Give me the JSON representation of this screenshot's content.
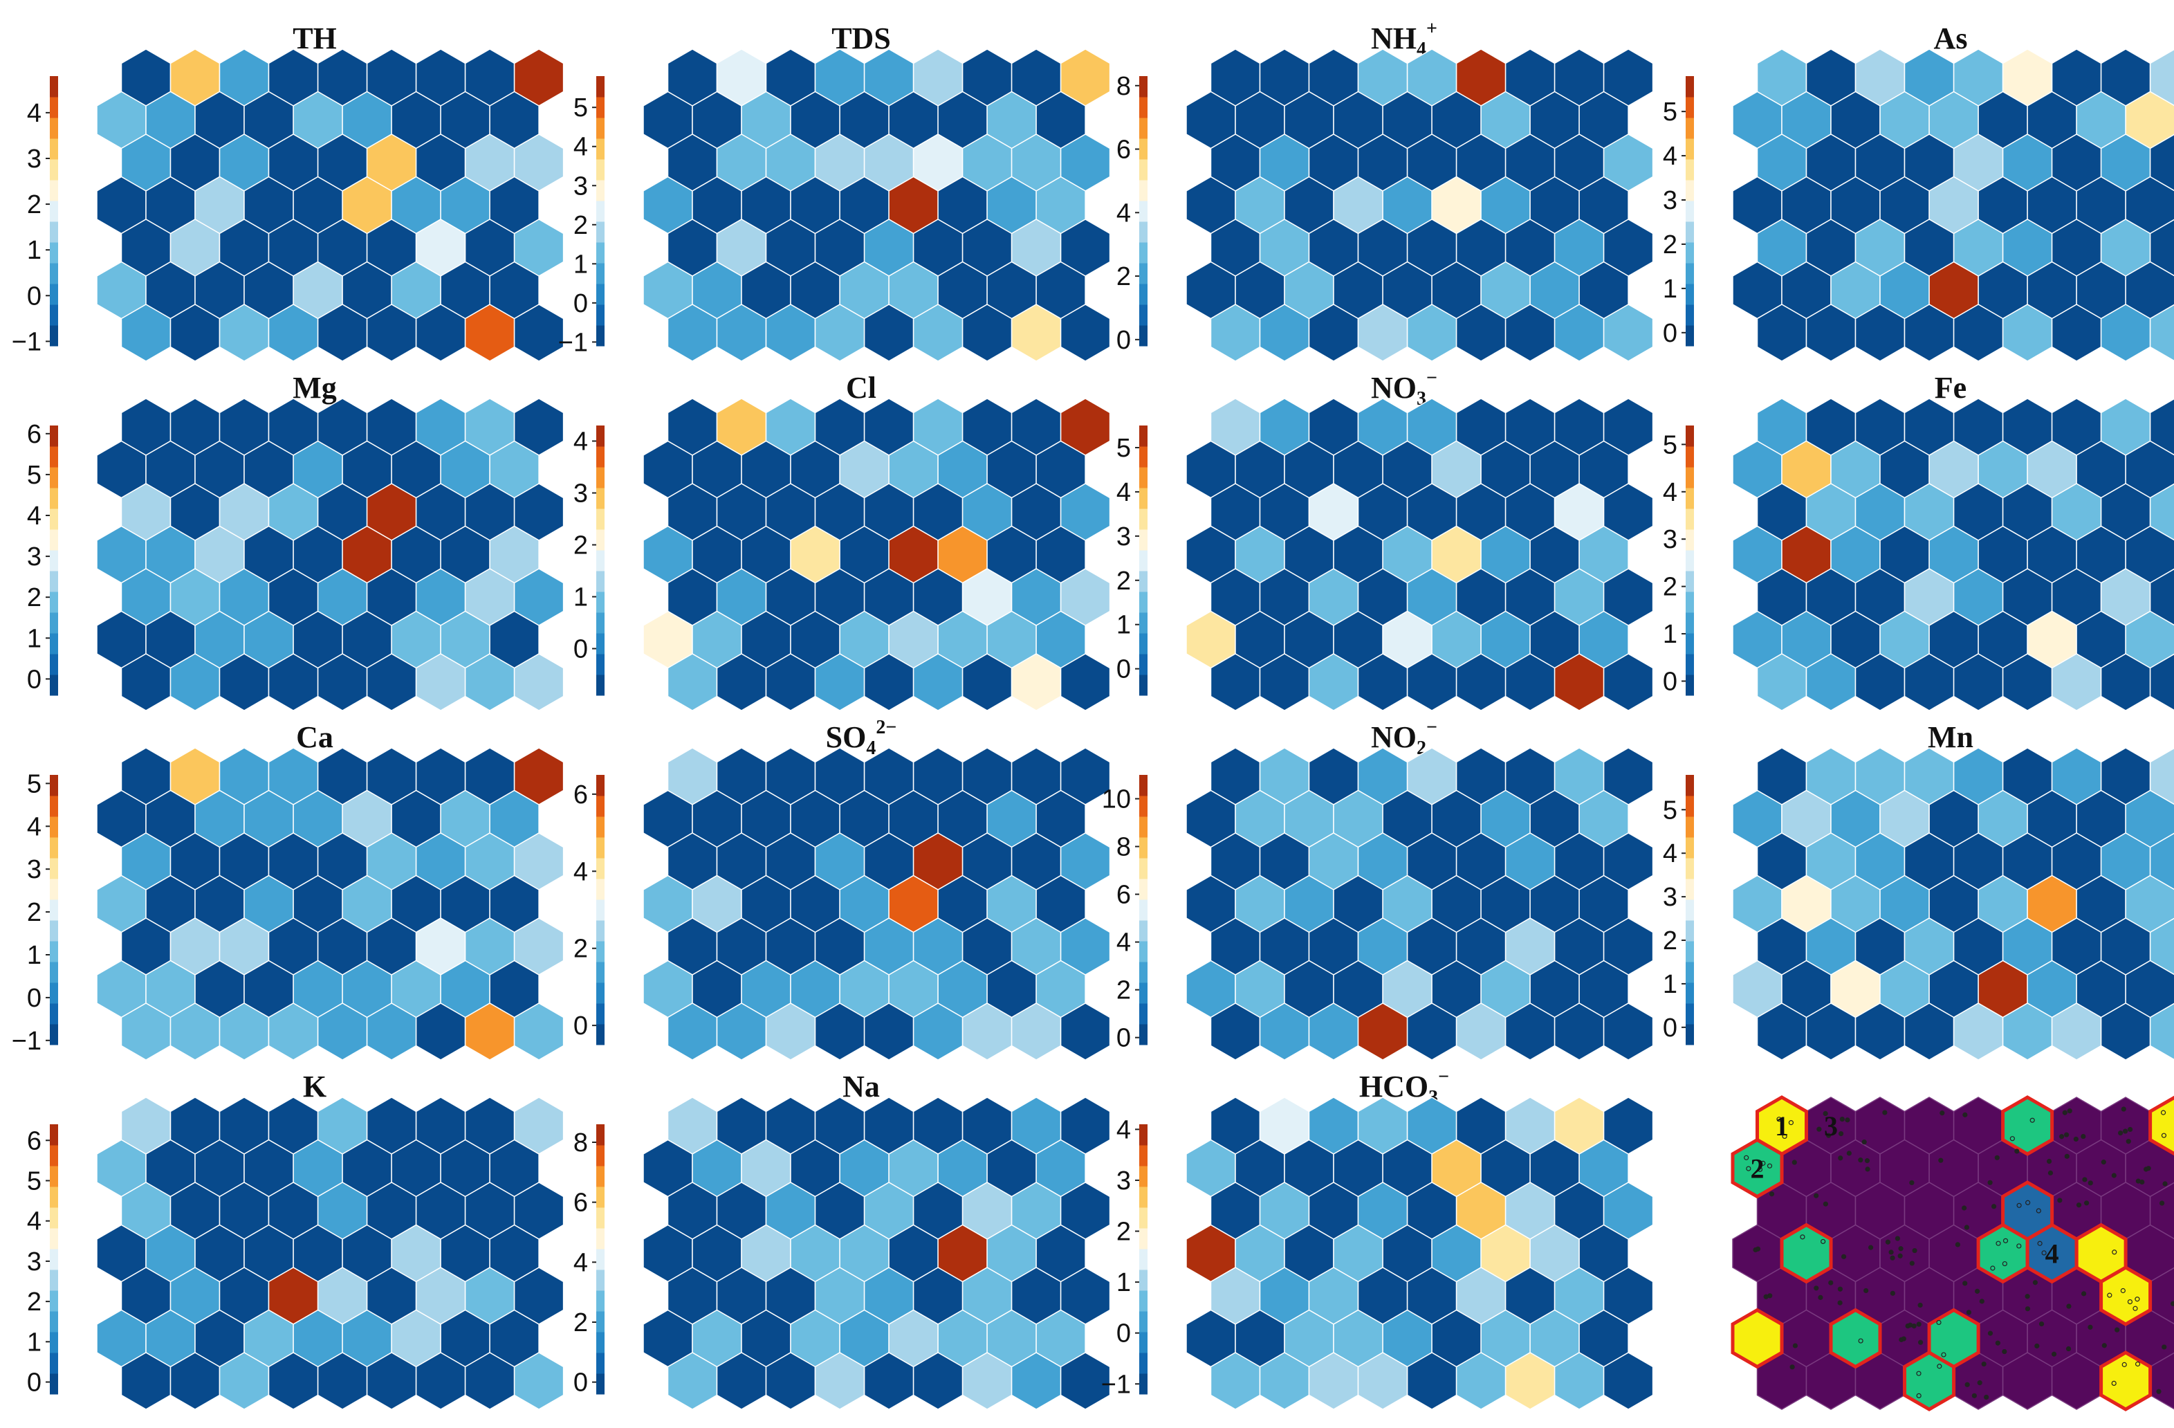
{
  "colors": {
    "palette": [
      "#084a8c",
      "#1167b0",
      "#2688c6",
      "#43a2d3",
      "#6cbde0",
      "#a7d4ea",
      "#e2f1f8",
      "#fff4d8",
      "#fde6a0",
      "#fbc65c",
      "#f7952c",
      "#e55c13",
      "#ae2f0d"
    ],
    "cluster": {
      "background": "#55095c",
      "grid": "#7a3a80",
      "cluster1": "#f7ef0e",
      "cluster2": "#1dc680",
      "cluster4": "#2069a6",
      "boundary": "#e3241c",
      "dot": "#222222"
    }
  },
  "chart_data": [
    {
      "type": "heatmap",
      "title": "TH",
      "title_sub": "",
      "title_sup": "",
      "colorbar": {
        "ticks": [
          -1,
          0,
          1,
          2,
          3,
          4
        ],
        "min": -1.1,
        "max": 4.8
      },
      "hot_cells": [
        {
          "row": 0,
          "col": 1,
          "value": 3.2
        },
        {
          "row": 0,
          "col": 8,
          "value": 4.8
        },
        {
          "row": 2,
          "col": 5,
          "value": 3.0
        },
        {
          "row": 3,
          "col": 5,
          "value": 3.3
        },
        {
          "row": 4,
          "col": 6,
          "value": 2.0
        },
        {
          "row": 6,
          "col": 7,
          "value": 4.3
        },
        {
          "row": 5,
          "col": 0,
          "value": 1.0
        }
      ]
    },
    {
      "type": "heatmap",
      "title": "TDS",
      "title_sub": "",
      "title_sup": "",
      "colorbar": {
        "ticks": [
          -1,
          0,
          1,
          2,
          3,
          4,
          5
        ],
        "min": -1.1,
        "max": 5.8
      },
      "hot_cells": [
        {
          "row": 0,
          "col": 1,
          "value": 2.3
        },
        {
          "row": 0,
          "col": 8,
          "value": 3.8
        },
        {
          "row": 2,
          "col": 5,
          "value": 2.2
        },
        {
          "row": 3,
          "col": 5,
          "value": 5.8
        },
        {
          "row": 6,
          "col": 7,
          "value": 3.5
        }
      ]
    },
    {
      "type": "heatmap",
      "title": "NH",
      "title_sub": "4",
      "title_sup": "+",
      "colorbar": {
        "ticks": [
          0,
          2,
          4,
          6,
          8
        ],
        "min": -0.2,
        "max": 8.3
      },
      "hot_cells": [
        {
          "row": 0,
          "col": 5,
          "value": 8.2
        },
        {
          "row": 3,
          "col": 5,
          "value": 4.5
        }
      ]
    },
    {
      "type": "heatmap",
      "title": "As",
      "title_sub": "",
      "title_sup": "",
      "colorbar": {
        "ticks": [
          0,
          1,
          2,
          3,
          4,
          5
        ],
        "min": -0.3,
        "max": 5.8
      },
      "hot_cells": [
        {
          "row": 0,
          "col": 5,
          "value": 3.4
        },
        {
          "row": 1,
          "col": 8,
          "value": 3.7
        },
        {
          "row": 5,
          "col": 4,
          "value": 5.8
        }
      ]
    },
    {
      "type": "heatmap",
      "title": "Mg",
      "title_sub": "",
      "title_sup": "",
      "colorbar": {
        "ticks": [
          0,
          1,
          2,
          3,
          4,
          5,
          6
        ],
        "min": -0.4,
        "max": 6.2
      },
      "hot_cells": [
        {
          "row": 2,
          "col": 5,
          "value": 6.2
        },
        {
          "row": 3,
          "col": 5,
          "value": 6.0
        }
      ]
    },
    {
      "type": "heatmap",
      "title": "Cl",
      "title_sub": "",
      "title_sup": "",
      "colorbar": {
        "ticks": [
          0,
          1,
          2,
          3,
          4
        ],
        "min": -0.9,
        "max": 4.3
      },
      "hot_cells": [
        {
          "row": 0,
          "col": 1,
          "value": 2.7
        },
        {
          "row": 0,
          "col": 8,
          "value": 4.0
        },
        {
          "row": 3,
          "col": 3,
          "value": 2.6
        },
        {
          "row": 3,
          "col": 5,
          "value": 4.2
        },
        {
          "row": 3,
          "col": 6,
          "value": 3.3
        },
        {
          "row": 4,
          "col": 6,
          "value": 1.8
        },
        {
          "row": 5,
          "col": 0,
          "value": 1.9
        },
        {
          "row": 6,
          "col": 7,
          "value": 1.9
        }
      ]
    },
    {
      "type": "heatmap",
      "title": "NO",
      "title_sub": "3",
      "title_sup": "−",
      "colorbar": {
        "ticks": [
          0,
          1,
          2,
          3,
          4,
          5
        ],
        "min": -0.6,
        "max": 5.5
      },
      "hot_cells": [
        {
          "row": 2,
          "col": 2,
          "value": 2.4
        },
        {
          "row": 2,
          "col": 7,
          "value": 2.4
        },
        {
          "row": 3,
          "col": 5,
          "value": 3.5
        },
        {
          "row": 5,
          "col": 0,
          "value": 3.3
        },
        {
          "row": 5,
          "col": 4,
          "value": 2.4
        },
        {
          "row": 6,
          "col": 7,
          "value": 5.5
        }
      ]
    },
    {
      "type": "heatmap",
      "title": "Fe",
      "title_sub": "",
      "title_sup": "",
      "colorbar": {
        "ticks": [
          0,
          1,
          2,
          3,
          4,
          5
        ],
        "min": -0.3,
        "max": 5.4
      },
      "hot_cells": [
        {
          "row": 1,
          "col": 1,
          "value": 3.8
        },
        {
          "row": 3,
          "col": 1,
          "value": 5.4
        },
        {
          "row": 5,
          "col": 6,
          "value": 2.8
        }
      ]
    },
    {
      "type": "heatmap",
      "title": "Ca",
      "title_sub": "",
      "title_sup": "",
      "colorbar": {
        "ticks": [
          -1,
          0,
          1,
          2,
          3,
          4,
          5
        ],
        "min": -1.1,
        "max": 5.2
      },
      "hot_cells": [
        {
          "row": 0,
          "col": 1,
          "value": 3.4
        },
        {
          "row": 0,
          "col": 8,
          "value": 5.2
        },
        {
          "row": 4,
          "col": 6,
          "value": 2.2
        },
        {
          "row": 5,
          "col": 0,
          "value": 1.0
        },
        {
          "row": 6,
          "col": 7,
          "value": 4.2
        }
      ]
    },
    {
      "type": "heatmap",
      "title": "SO",
      "title_sub": "4",
      "title_sup": "2−",
      "colorbar": {
        "ticks": [
          0,
          2,
          4,
          6
        ],
        "min": -0.5,
        "max": 6.5
      },
      "hot_cells": [
        {
          "row": 2,
          "col": 5,
          "value": 6.5
        },
        {
          "row": 3,
          "col": 5,
          "value": 5.6
        }
      ]
    },
    {
      "type": "heatmap",
      "title": "NO",
      "title_sub": "2",
      "title_sup": "−",
      "colorbar": {
        "ticks": [
          0,
          2,
          4,
          6,
          8,
          10
        ],
        "min": -0.3,
        "max": 11.0
      },
      "hot_cells": [
        {
          "row": 6,
          "col": 3,
          "value": 11.0
        }
      ]
    },
    {
      "type": "heatmap",
      "title": "Mn",
      "title_sub": "",
      "title_sup": "",
      "colorbar": {
        "ticks": [
          0,
          1,
          2,
          3,
          4,
          5
        ],
        "min": -0.4,
        "max": 5.8
      },
      "hot_cells": [
        {
          "row": 3,
          "col": 1,
          "value": 3.3
        },
        {
          "row": 3,
          "col": 6,
          "value": 4.4
        },
        {
          "row": 5,
          "col": 2,
          "value": 3.2
        },
        {
          "row": 5,
          "col": 5,
          "value": 5.7
        }
      ]
    },
    {
      "type": "heatmap",
      "title": "K",
      "title_sub": "",
      "title_sup": "",
      "colorbar": {
        "ticks": [
          0,
          1,
          2,
          3,
          4,
          5,
          6
        ],
        "min": -0.3,
        "max": 6.4
      },
      "hot_cells": [
        {
          "row": 4,
          "col": 3,
          "value": 6.4
        }
      ]
    },
    {
      "type": "heatmap",
      "title": "Na",
      "title_sub": "",
      "title_sup": "",
      "colorbar": {
        "ticks": [
          0,
          2,
          4,
          6,
          8
        ],
        "min": -0.4,
        "max": 8.6
      },
      "hot_cells": [
        {
          "row": 3,
          "col": 6,
          "value": 8.6
        }
      ]
    },
    {
      "type": "heatmap",
      "title": "HCO",
      "title_sub": "3",
      "title_sup": "−",
      "colorbar": {
        "ticks": [
          -1,
          0,
          1,
          2,
          3,
          4
        ],
        "min": -1.2,
        "max": 4.1
      },
      "hot_cells": [
        {
          "row": 0,
          "col": 1,
          "value": 1.5
        },
        {
          "row": 0,
          "col": 7,
          "value": 2.2
        },
        {
          "row": 1,
          "col": 5,
          "value": 2.8
        },
        {
          "row": 2,
          "col": 5,
          "value": 2.8
        },
        {
          "row": 3,
          "col": 0,
          "value": 4.1
        },
        {
          "row": 3,
          "col": 6,
          "value": 2.2
        },
        {
          "row": 6,
          "col": 6,
          "value": 2.2
        }
      ]
    },
    {
      "type": "heatmap",
      "title": "",
      "title_sub": "",
      "title_sup": "",
      "cluster_labels": [
        {
          "row": 0,
          "col": 0,
          "label": "1"
        },
        {
          "row": 0,
          "col": 1,
          "label": "3"
        },
        {
          "row": 1,
          "col": 0,
          "label": "2"
        },
        {
          "row": 3,
          "col": 6,
          "label": "4"
        }
      ],
      "clusters": {
        "1": [
          [
            0,
            0
          ],
          [
            0,
            8
          ],
          [
            3,
            7
          ],
          [
            4,
            7
          ],
          [
            5,
            0
          ],
          [
            6,
            7
          ]
        ],
        "2": [
          [
            0,
            5
          ],
          [
            1,
            0
          ],
          [
            3,
            1
          ],
          [
            3,
            5
          ],
          [
            5,
            2
          ],
          [
            5,
            4
          ],
          [
            6,
            3
          ]
        ],
        "4": [
          [
            2,
            5
          ],
          [
            3,
            6
          ]
        ]
      }
    }
  ],
  "grid": {
    "rows": 7,
    "cols": 9
  },
  "seed": 7
}
